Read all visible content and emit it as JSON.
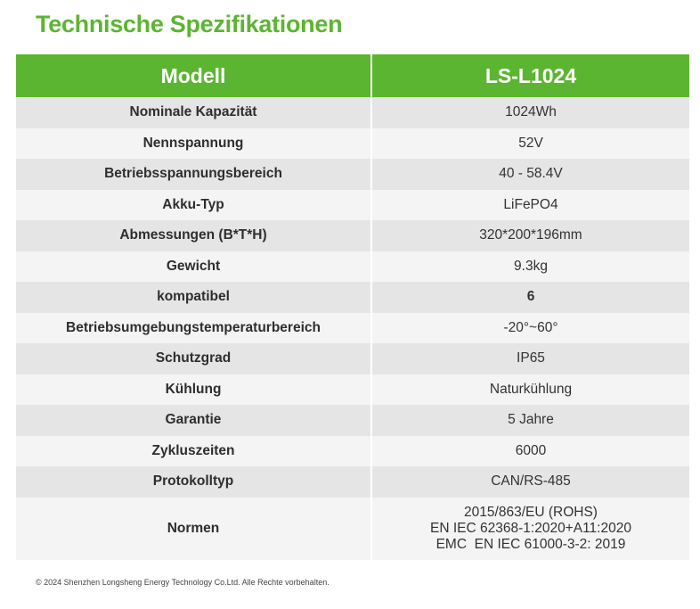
{
  "title": "Technische Spezifikationen",
  "header": {
    "col1": "Modell",
    "col2": "LS-L1024"
  },
  "rows": [
    {
      "label": "Nominale Kapazität",
      "value": "1024Wh"
    },
    {
      "label": "Nennspannung",
      "value": "52V"
    },
    {
      "label": "Betriebsspannungsbereich",
      "value": "40 - 58.4V"
    },
    {
      "label": "Akku-Typ",
      "value": "LiFePO4"
    },
    {
      "label": "Abmessungen (B*T*H)",
      "value": "320*200*196mm"
    },
    {
      "label": "Gewicht",
      "value": "9.3kg"
    },
    {
      "label": "kompatibel",
      "value": "6"
    },
    {
      "label": "Betriebsumgebungstemperaturbereich",
      "value": "-20°~60°"
    },
    {
      "label": "Schutzgrad",
      "value": "IP65"
    },
    {
      "label": "Kühlung",
      "value": "Naturkühlung"
    },
    {
      "label": "Garantie",
      "value": "5 Jahre"
    },
    {
      "label": "Zykluszeiten",
      "value": "6000"
    },
    {
      "label": "Protokolltyp",
      "value": "CAN/RS-485"
    }
  ],
  "normen": {
    "label": "Normen",
    "lines": [
      "2015/863/EU (ROHS)",
      "EN IEC 62368-1:2020+A11:2020",
      "EMC  EN IEC 61000-3-2: 2019"
    ]
  },
  "footer": "© 2024 Shenzhen Longsheng Energy Technology Co.Ltd. Alle Rechte vorbehalten."
}
